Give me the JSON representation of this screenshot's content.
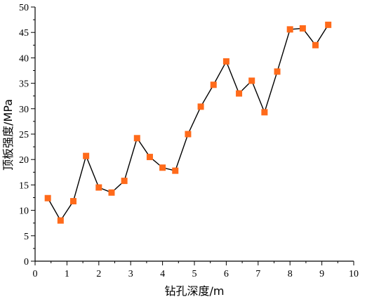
{
  "chart_data": {
    "type": "line",
    "xlabel": "钻孔深度/m",
    "ylabel": "顶板强度/MPa",
    "xlim": [
      0,
      10
    ],
    "ylim": [
      0,
      50
    ],
    "x_ticks": [
      "0",
      "1",
      "2",
      "3",
      "4",
      "5",
      "6",
      "7",
      "8",
      "9",
      "10"
    ],
    "y_ticks": [
      "0",
      "5",
      "10",
      "15",
      "20",
      "25",
      "30",
      "35",
      "40",
      "45",
      "50"
    ],
    "grid": false,
    "line_color": "#000000",
    "marker_color": "#FF6A1A",
    "marker": "square",
    "series": [
      {
        "x": [
          0.4,
          0.8,
          1.2,
          1.6,
          2.0,
          2.4,
          2.8,
          3.2,
          3.6,
          4.0,
          4.4,
          4.8,
          5.2,
          5.6,
          6.0,
          6.4,
          6.8,
          7.2,
          7.6,
          8.0,
          8.4,
          8.8,
          9.2
        ],
        "y": [
          12.4,
          8.0,
          11.8,
          20.7,
          14.5,
          13.5,
          15.8,
          24.2,
          20.5,
          18.4,
          17.8,
          25.0,
          30.4,
          34.7,
          39.3,
          33.0,
          35.5,
          29.3,
          37.3,
          45.6,
          45.8,
          42.5,
          46.5
        ]
      }
    ]
  }
}
